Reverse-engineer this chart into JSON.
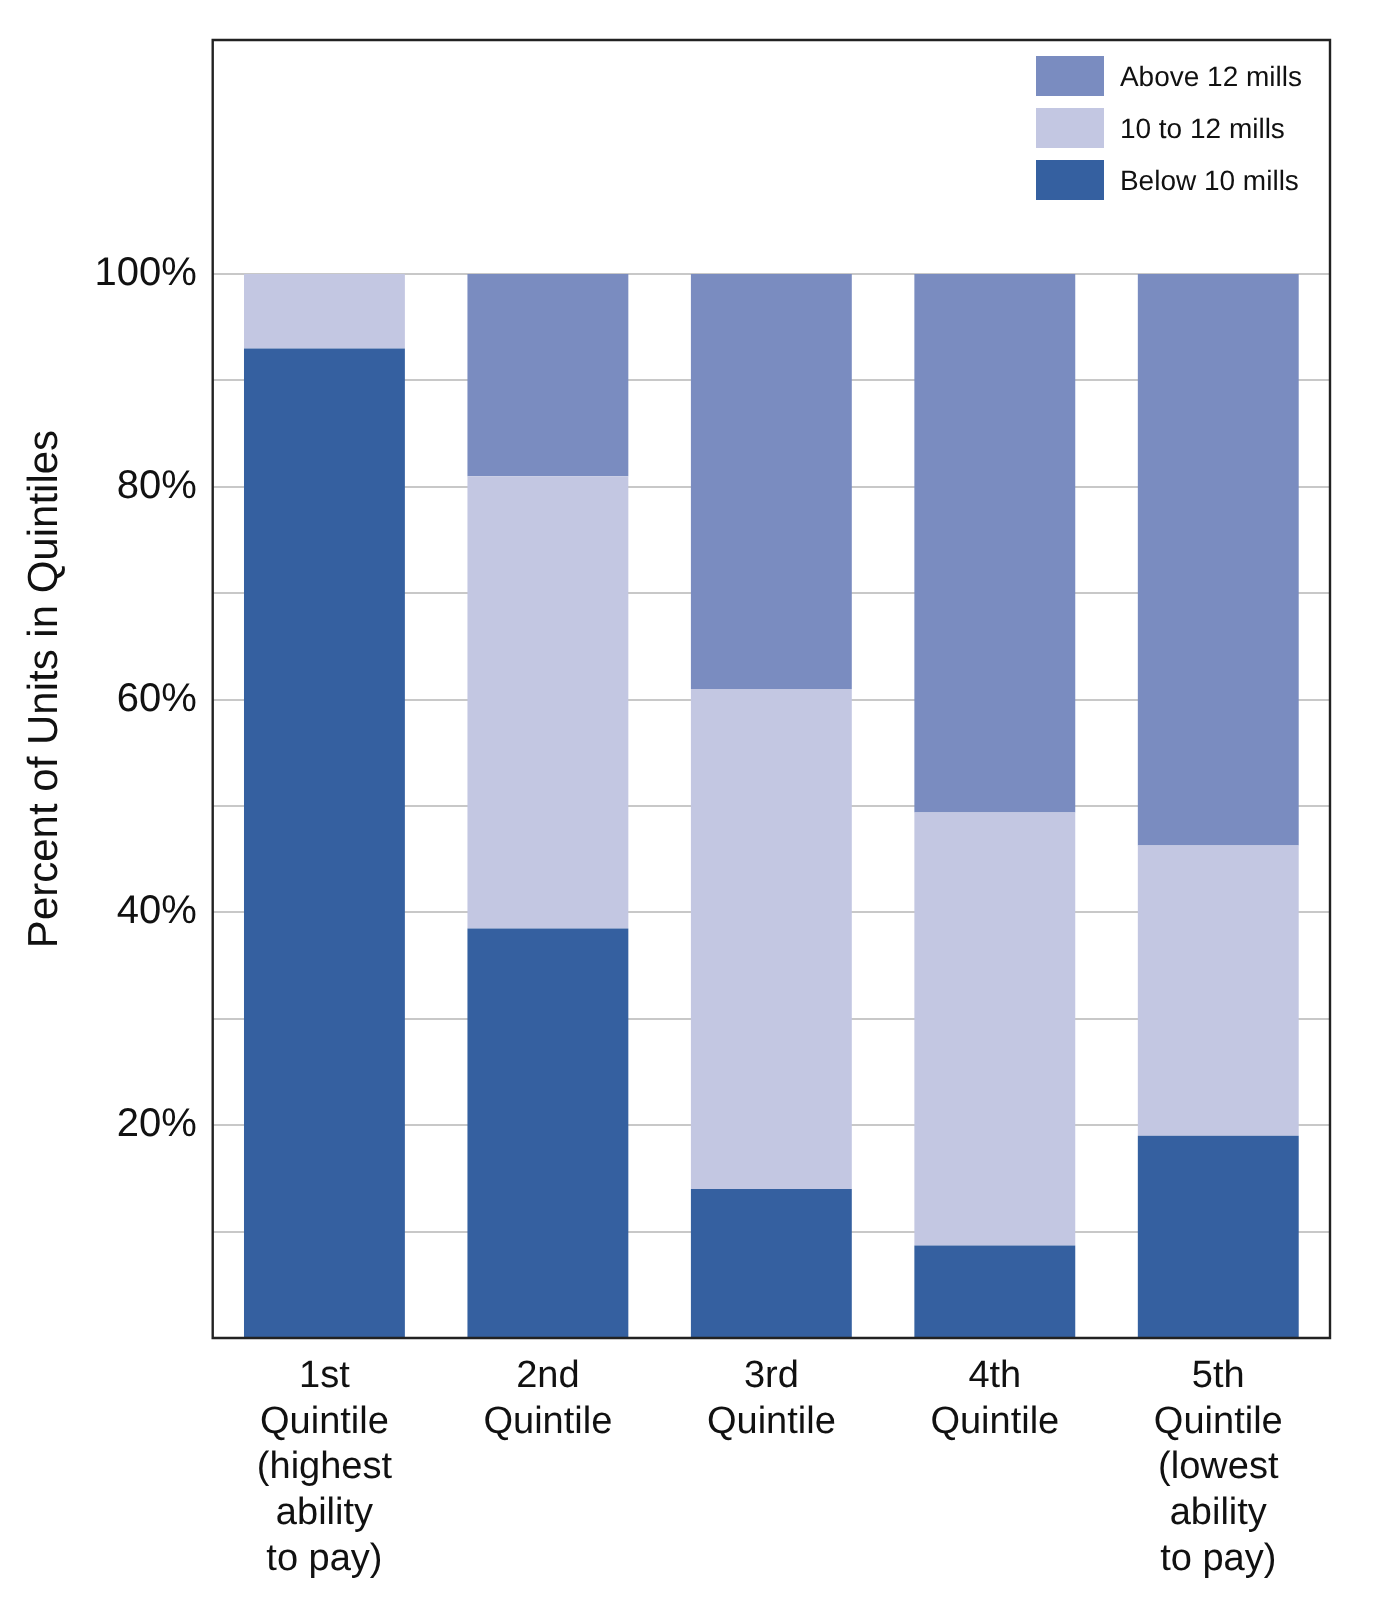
{
  "chart_data": {
    "type": "bar",
    "stacked": true,
    "ylabel": "Percent of Units in Quintiles",
    "categories": [
      "1st\nQuintile\n(highest\nability\nto pay)",
      "2nd\nQuintile",
      "3rd\nQuintile",
      "4th\nQuintile",
      "5th\nQuintile\n(lowest\nability\nto pay)"
    ],
    "series": [
      {
        "name": "Below 10 mills",
        "color": "#3560a0",
        "values": [
          93,
          38.5,
          14,
          8.7,
          19
        ]
      },
      {
        "name": "10 to 12 mills",
        "color": "#c3c7e2",
        "values": [
          7,
          42.5,
          47,
          40.7,
          27.3
        ]
      },
      {
        "name": "Above 12 mills",
        "color": "#7a8cc0",
        "values": [
          0,
          19,
          39,
          50.6,
          53.7
        ]
      }
    ],
    "ylim": [
      0,
      122
    ],
    "yticks": [
      {
        "value": 10,
        "label": null
      },
      {
        "value": 20,
        "label": "20%"
      },
      {
        "value": 30,
        "label": null
      },
      {
        "value": 40,
        "label": "40%"
      },
      {
        "value": 50,
        "label": null
      },
      {
        "value": 60,
        "label": "60%"
      },
      {
        "value": 70,
        "label": null
      },
      {
        "value": 80,
        "label": "80%"
      },
      {
        "value": 90,
        "label": null
      },
      {
        "value": 100,
        "label": "100%"
      }
    ],
    "grid": "y",
    "legend": "top right"
  }
}
